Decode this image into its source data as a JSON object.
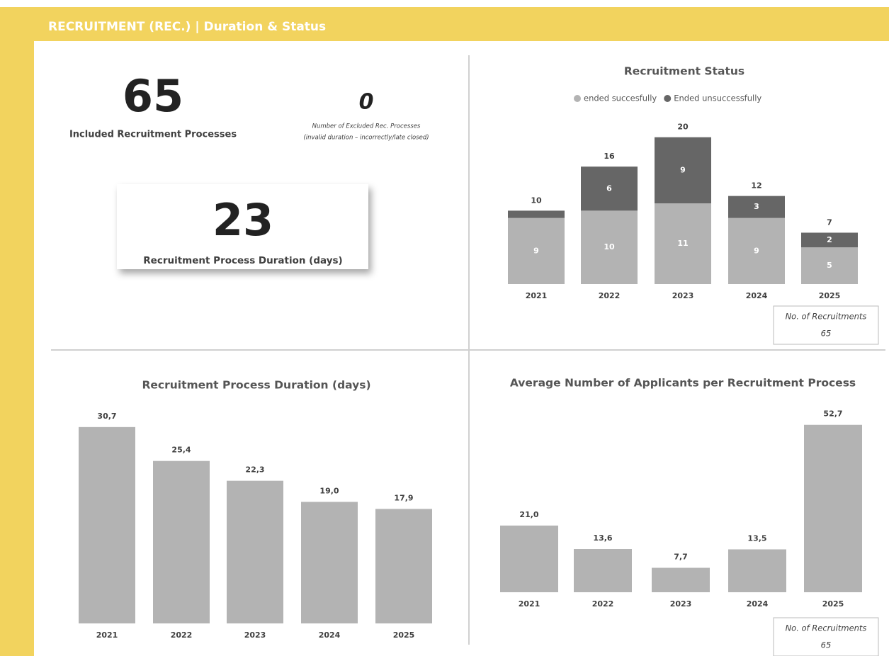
{
  "header": {
    "title": "RECRUITMENT (REC.) | Duration & Status"
  },
  "kpis": [
    {
      "value": 65,
      "label": "Included Recruitment Processes"
    },
    {
      "value": 0,
      "label": [
        "Number of Excluded Rec. Processes",
        "(invalid duration – incorrectly/late closed)"
      ]
    },
    {
      "value": 23,
      "label": "Recruitment Process Duration (days)"
    }
  ],
  "chart_data": [
    {
      "type": "stacked_bar",
      "title": "Recruitment Status",
      "categories": [
        "2021",
        "2022",
        "2023",
        "2024",
        "2025"
      ],
      "series": [
        {
          "name": "ended succesfully",
          "color": "#b3b3b3",
          "values": [
            9,
            10,
            11,
            9,
            5
          ]
        },
        {
          "name": "Ended unsuccessfully",
          "color": "#666666",
          "values": [
            1,
            6,
            9,
            3,
            2
          ]
        }
      ],
      "totals": [
        10,
        16,
        20,
        12,
        7
      ],
      "ylim": [
        0,
        22
      ],
      "legend": "top",
      "annotation": {
        "label": "No. of Recruitments",
        "value": 65
      }
    },
    {
      "type": "bar",
      "title": "Recruitment Process Duration (days)",
      "categories": [
        "2021",
        "2022",
        "2023",
        "2024",
        "2025"
      ],
      "values": [
        30.7,
        25.4,
        22.3,
        19.0,
        17.9
      ],
      "value_labels": [
        "30,7",
        "25,4",
        "22,3",
        "19,0",
        "17,9"
      ],
      "color": "#b3b3b3",
      "ylim": [
        0,
        35
      ]
    },
    {
      "type": "bar",
      "title": "Average Number of Applicants per Recruitment Process",
      "categories": [
        "2021",
        "2022",
        "2023",
        "2024",
        "2025"
      ],
      "values": [
        21.0,
        13.6,
        7.7,
        13.5,
        52.7
      ],
      "value_labels": [
        "21,0",
        "13,6",
        "7,7",
        "13,5",
        "52,7"
      ],
      "color": "#b3b3b3",
      "ylim": [
        0,
        60
      ],
      "annotation": {
        "label": "No. of Recruitments",
        "value": 65
      }
    }
  ]
}
